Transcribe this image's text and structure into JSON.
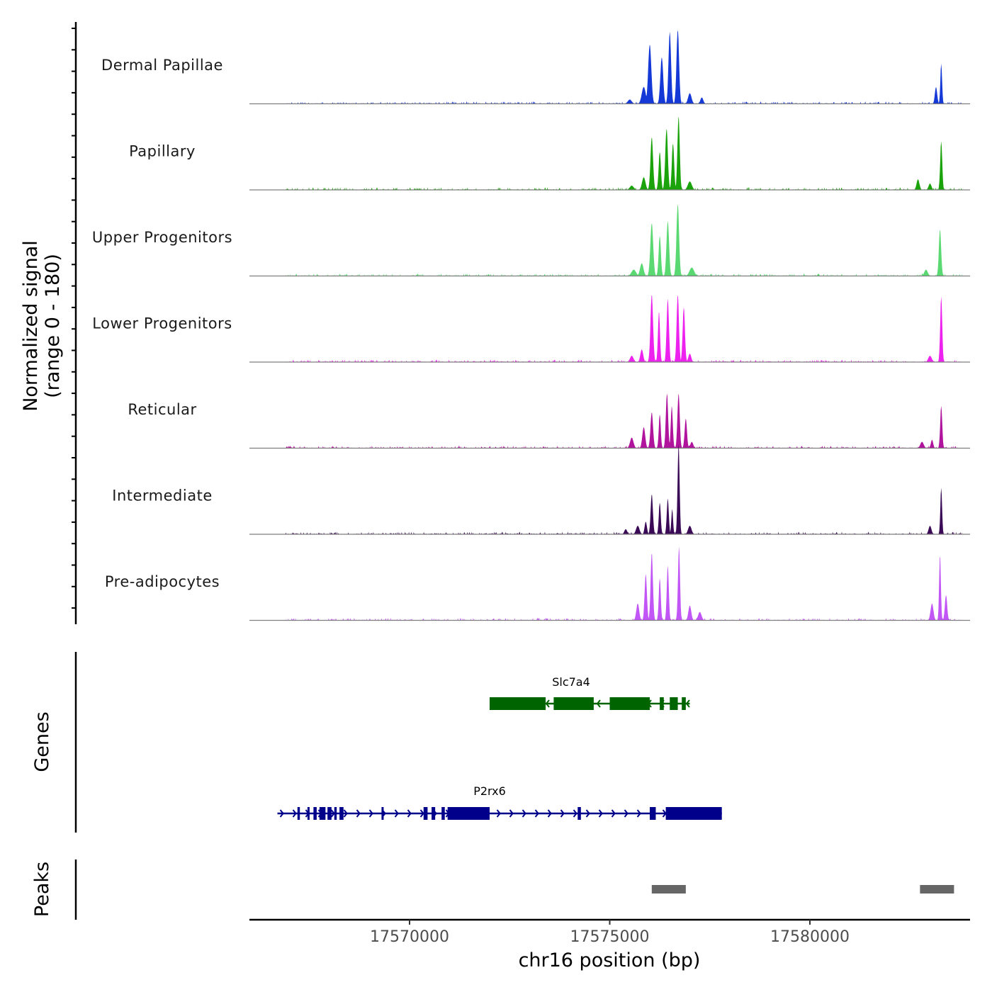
{
  "chart_data": {
    "type": "area",
    "title": "",
    "chromosome": "chr16",
    "xlabel": "chr16 position (bp)",
    "ylabel_line1": "Normalized signal",
    "ylabel_line2": "(range 0 - 180)",
    "ylim": [
      0,
      180
    ],
    "xlim": [
      17566000,
      17584000
    ],
    "xticks": [
      17570000,
      17575000,
      17580000
    ],
    "xtick_labels": [
      "17570000",
      "17575000",
      "17580000"
    ],
    "signal_range": [
      17566900,
      17583800
    ],
    "tracks": [
      {
        "name": "Dermal Papillae",
        "color": "#1439D6",
        "peaks": [
          [
            17575500,
            10,
            70
          ],
          [
            17575850,
            40,
            70
          ],
          [
            17576000,
            140,
            55
          ],
          [
            17576300,
            110,
            50
          ],
          [
            17576500,
            170,
            45
          ],
          [
            17576700,
            175,
            45
          ],
          [
            17577000,
            25,
            60
          ],
          [
            17577300,
            15,
            50
          ],
          [
            17583150,
            40,
            40
          ],
          [
            17583280,
            95,
            30
          ]
        ]
      },
      {
        "name": "Papillary",
        "color": "#1AA30A",
        "peaks": [
          [
            17575550,
            10,
            70
          ],
          [
            17575850,
            30,
            60
          ],
          [
            17576050,
            125,
            45
          ],
          [
            17576250,
            90,
            40
          ],
          [
            17576420,
            145,
            45
          ],
          [
            17576580,
            110,
            40
          ],
          [
            17576720,
            175,
            40
          ],
          [
            17577000,
            20,
            70
          ],
          [
            17582700,
            25,
            50
          ],
          [
            17583000,
            15,
            50
          ],
          [
            17583280,
            115,
            35
          ]
        ]
      },
      {
        "name": "Upper Progenitors",
        "color": "#5AD972",
        "peaks": [
          [
            17575600,
            15,
            80
          ],
          [
            17575800,
            30,
            60
          ],
          [
            17576050,
            125,
            50
          ],
          [
            17576250,
            95,
            40
          ],
          [
            17576450,
            130,
            45
          ],
          [
            17576700,
            170,
            45
          ],
          [
            17577050,
            20,
            80
          ],
          [
            17582900,
            15,
            60
          ],
          [
            17583250,
            110,
            40
          ]
        ]
      },
      {
        "name": "Lower Progenitors",
        "color": "#EE22EE",
        "peaks": [
          [
            17575550,
            15,
            60
          ],
          [
            17575800,
            30,
            50
          ],
          [
            17576050,
            160,
            45
          ],
          [
            17576230,
            120,
            35
          ],
          [
            17576450,
            150,
            40
          ],
          [
            17576700,
            160,
            40
          ],
          [
            17576850,
            130,
            40
          ],
          [
            17577000,
            20,
            50
          ],
          [
            17583000,
            15,
            60
          ],
          [
            17583280,
            155,
            35
          ]
        ]
      },
      {
        "name": "Reticular",
        "color": "#B0149D",
        "peaks": [
          [
            17575550,
            25,
            60
          ],
          [
            17575850,
            50,
            50
          ],
          [
            17576050,
            85,
            45
          ],
          [
            17576250,
            80,
            35
          ],
          [
            17576430,
            130,
            40
          ],
          [
            17576550,
            100,
            35
          ],
          [
            17576720,
            130,
            40
          ],
          [
            17576900,
            70,
            40
          ],
          [
            17577050,
            15,
            50
          ],
          [
            17582800,
            15,
            60
          ],
          [
            17583050,
            20,
            40
          ],
          [
            17583280,
            100,
            35
          ]
        ]
      },
      {
        "name": "Intermediate",
        "color": "#3B0A57",
        "peaks": [
          [
            17575400,
            12,
            50
          ],
          [
            17575700,
            20,
            60
          ],
          [
            17575900,
            30,
            40
          ],
          [
            17576050,
            95,
            40
          ],
          [
            17576250,
            75,
            35
          ],
          [
            17576450,
            85,
            35
          ],
          [
            17576560,
            60,
            30
          ],
          [
            17576720,
            215,
            35
          ],
          [
            17577000,
            20,
            60
          ],
          [
            17583000,
            20,
            50
          ],
          [
            17583280,
            110,
            30
          ]
        ]
      },
      {
        "name": "Pre-adipocytes",
        "color": "#C255F5",
        "peaks": [
          [
            17575700,
            40,
            50
          ],
          [
            17575900,
            110,
            40
          ],
          [
            17576050,
            160,
            40
          ],
          [
            17576250,
            100,
            35
          ],
          [
            17576450,
            130,
            35
          ],
          [
            17576730,
            175,
            35
          ],
          [
            17577000,
            35,
            50
          ],
          [
            17577250,
            20,
            60
          ],
          [
            17583050,
            40,
            50
          ],
          [
            17583250,
            155,
            30
          ],
          [
            17583400,
            60,
            40
          ]
        ]
      }
    ],
    "genes_label": "Genes",
    "genes": [
      {
        "name": "Slc7a4",
        "color": "#006400",
        "strand": "-",
        "start": 17572000,
        "end": 17577000,
        "exons": [
          [
            17572000,
            17573400
          ],
          [
            17573600,
            17574600
          ],
          [
            17575000,
            17576000
          ],
          [
            17576250,
            17576350
          ],
          [
            17576500,
            17576700
          ],
          [
            17576800,
            17576900
          ]
        ]
      },
      {
        "name": "P2rx6",
        "color": "#00008B",
        "strand": "+",
        "start": 17566700,
        "end": 17577800,
        "exons": [
          [
            17567200,
            17567260
          ],
          [
            17567450,
            17567500
          ],
          [
            17567600,
            17567680
          ],
          [
            17567750,
            17567900
          ],
          [
            17567950,
            17568050
          ],
          [
            17568120,
            17568180
          ],
          [
            17568250,
            17568350
          ],
          [
            17569300,
            17569350
          ],
          [
            17570350,
            17570450
          ],
          [
            17570550,
            17570640
          ],
          [
            17570800,
            17570880
          ],
          [
            17570950,
            17572000
          ],
          [
            17574200,
            17574280
          ],
          [
            17576000,
            17576150
          ],
          [
            17576400,
            17577800
          ]
        ]
      }
    ],
    "peaks_label": "Peaks",
    "peak_regions": [
      [
        17576050,
        17576900
      ],
      [
        17582750,
        17583600
      ]
    ]
  }
}
